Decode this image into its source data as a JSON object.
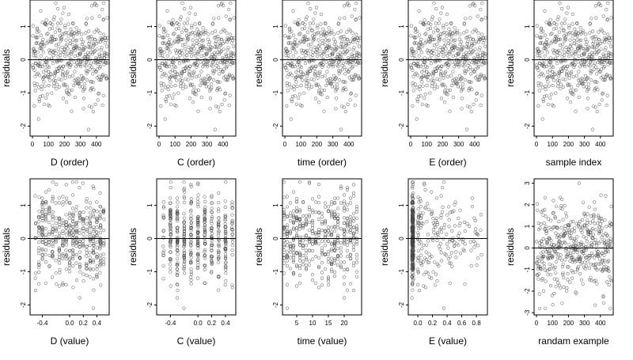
{
  "figure": {
    "panels": [
      {
        "xlabel": "D (order)",
        "ylabel": "residuals",
        "xlim": [
          -15,
          480
        ],
        "ylim": [
          -2.3,
          1.8
        ],
        "xticks": [
          0,
          100,
          200,
          300,
          400
        ],
        "yticks": [
          -2,
          -1,
          0,
          1
        ],
        "refline": 0,
        "kind": "order"
      },
      {
        "xlabel": "C (order)",
        "ylabel": "residuals",
        "xlim": [
          -15,
          480
        ],
        "ylim": [
          -2.3,
          1.8
        ],
        "xticks": [
          0,
          100,
          200,
          300,
          400
        ],
        "yticks": [
          -2,
          -1,
          0,
          1
        ],
        "refline": 0,
        "kind": "order"
      },
      {
        "xlabel": "time (order)",
        "ylabel": "residuals",
        "xlim": [
          -15,
          480
        ],
        "ylim": [
          -2.3,
          1.8
        ],
        "xticks": [
          0,
          100,
          200,
          300,
          400
        ],
        "yticks": [
          -2,
          -1,
          0,
          1
        ],
        "refline": 0,
        "kind": "order"
      },
      {
        "xlabel": "E (order)",
        "ylabel": "residuals",
        "xlim": [
          -15,
          480
        ],
        "ylim": [
          -2.3,
          1.8
        ],
        "xticks": [
          0,
          100,
          200,
          300,
          400
        ],
        "yticks": [
          -2,
          -1,
          0,
          1
        ],
        "refline": 0,
        "kind": "order"
      },
      {
        "xlabel": "sample index",
        "ylabel": "residuals",
        "xlim": [
          -15,
          480
        ],
        "ylim": [
          -2.3,
          1.8
        ],
        "xticks": [
          0,
          100,
          200,
          300,
          400
        ],
        "yticks": [
          -2,
          -1,
          0,
          1
        ],
        "refline": 0,
        "kind": "order"
      },
      {
        "xlabel": "D (value)",
        "ylabel": "residuals",
        "xlim": [
          -0.58,
          0.58
        ],
        "ylim": [
          -2.3,
          1.8
        ],
        "xticks": [
          -0.4,
          0.0,
          0.2,
          0.4
        ],
        "xticklabels": [
          "-0.4",
          "0.0",
          "0.2",
          "0.4"
        ],
        "yticks": [
          -2,
          -1,
          0,
          1
        ],
        "refline": 0,
        "kind": "dvalue"
      },
      {
        "xlabel": "C (value)",
        "ylabel": "residuals",
        "xlim": [
          -0.6,
          0.55
        ],
        "ylim": [
          -2.3,
          1.8
        ],
        "xticks": [
          -0.4,
          0.0,
          0.2,
          0.4
        ],
        "xticklabels": [
          "-0.4",
          "0.0",
          "0.2",
          "0.4"
        ],
        "yticks": [
          -2,
          -1,
          0,
          1
        ],
        "refline": 0,
        "kind": "cvalue"
      },
      {
        "xlabel": "time (value)",
        "ylabel": "residuals",
        "xlim": [
          0.5,
          25.5
        ],
        "ylim": [
          -2.3,
          1.8
        ],
        "xticks": [
          5,
          10,
          15,
          20
        ],
        "yticks": [
          -2,
          -1,
          0,
          1
        ],
        "refline": 0,
        "kind": "timevalue"
      },
      {
        "xlabel": "E (value)",
        "ylabel": "residuals",
        "xlim": [
          -0.13,
          0.95
        ],
        "ylim": [
          -2.3,
          1.8
        ],
        "xticks": [
          0.0,
          0.2,
          0.4,
          0.6,
          0.8
        ],
        "xticklabels": [
          "0.0",
          "0.2",
          "0.4",
          "0.6",
          "0.8"
        ],
        "yticks": [
          -2,
          -1,
          0,
          1
        ],
        "refline": 0,
        "kind": "evalue"
      },
      {
        "xlabel": "randam example",
        "ylabel": "residuals",
        "xlim": [
          -15,
          480
        ],
        "ylim": [
          -3.1,
          3.2
        ],
        "xticks": [
          0,
          100,
          200,
          300,
          400
        ],
        "yticks": [
          -3,
          -2,
          -1,
          0,
          1,
          2,
          3
        ],
        "refline": 0,
        "kind": "random"
      }
    ]
  },
  "chart_data": {
    "type": "scatter",
    "n_points": 470,
    "layout": "2 rows x 5 columns",
    "point_style": "open circles, grey",
    "reference_line": "horizontal at 0 in every panel",
    "panels": [
      "D (order)",
      "C (order)",
      "time (order)",
      "E (order)",
      "sample index",
      "D (value)",
      "C (value)",
      "time (value)",
      "E (value)",
      "randam example"
    ],
    "y_range_approx": [
      -2.1,
      1.7
    ],
    "random_panel_y_range_approx": [
      -2.8,
      3.0
    ]
  }
}
